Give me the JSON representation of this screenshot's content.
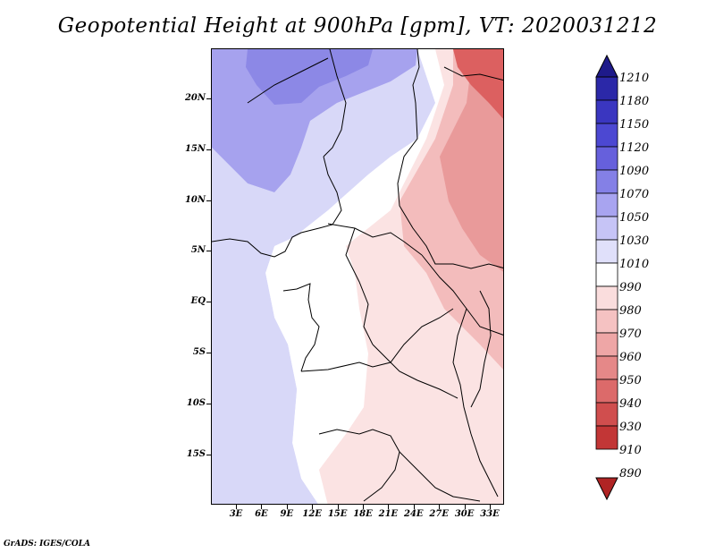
{
  "title": "Geopotential Height at 900hPa [gpm], VT: 2020031212",
  "credit": "GrADS: IGES/COLA",
  "map": {
    "lat_ticks": [
      "20N",
      "15N",
      "10N",
      "5N",
      "EQ",
      "5S",
      "10S",
      "15S"
    ],
    "lon_ticks": [
      "3E",
      "6E",
      "9E",
      "12E",
      "15E",
      "18E",
      "21E",
      "24E",
      "27E",
      "30E",
      "33E"
    ]
  },
  "colorbar": {
    "levels": [
      "1210",
      "1180",
      "1150",
      "1120",
      "1090",
      "1070",
      "1050",
      "1030",
      "1010",
      "990",
      "980",
      "970",
      "960",
      "950",
      "940",
      "930",
      "910",
      "890"
    ],
    "colors": [
      "#1e1a8a",
      "#2b28a8",
      "#3a36c0",
      "#4c48d2",
      "#6660dc",
      "#8480e6",
      "#a8a4f0",
      "#c6c4f6",
      "#e0e0fa",
      "#ffffff",
      "#fadddd",
      "#f5c2c2",
      "#eea6a6",
      "#e58888",
      "#dc6a6a",
      "#d04e4e",
      "#c23636",
      "#b02424"
    ]
  },
  "palette": {
    "water_blue": "#d8d8f8",
    "north_purple": "#a6a2ee",
    "deep_purple": "#8c88e6",
    "pale_pink": "#fbe3e3",
    "mid_pink": "#f3bcbc",
    "salmon": "#e99a9a",
    "red": "#dc6060",
    "deep_red": "#c83a3a"
  }
}
